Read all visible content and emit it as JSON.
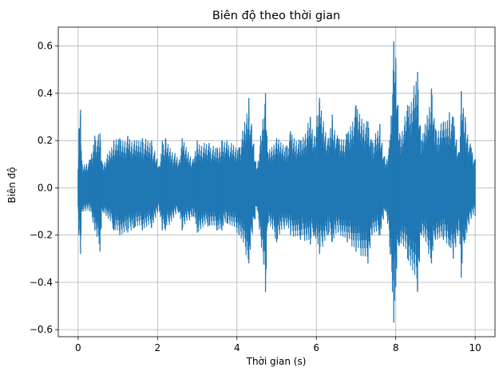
{
  "chart_data": {
    "type": "line",
    "title": "Biên độ theo thời gian",
    "xlabel": "Thời gian (s)",
    "ylabel": "Biên độ",
    "xlim": [
      -0.5,
      10.5
    ],
    "ylim": [
      -0.63,
      0.68
    ],
    "x_ticks": [
      0,
      2,
      4,
      6,
      8,
      10
    ],
    "x_tick_labels": [
      "0",
      "2",
      "4",
      "6",
      "8",
      "10"
    ],
    "y_ticks": [
      -0.6,
      -0.4,
      -0.2,
      0.0,
      0.2,
      0.4,
      0.6
    ],
    "y_tick_labels": [
      "−0.6",
      "−0.4",
      "−0.2",
      "0.0",
      "0.2",
      "0.4",
      "0.6"
    ],
    "grid": true,
    "line_color": "#1f77b4",
    "series": [
      {
        "name": "",
        "envelope": {
          "x": [
            0.0,
            0.02,
            0.06,
            0.1,
            0.3,
            0.42,
            0.55,
            0.62,
            0.9,
            1.05,
            1.25,
            1.42,
            1.62,
            1.85,
            2.05,
            2.12,
            2.2,
            2.55,
            2.62,
            2.9,
            3.0,
            3.3,
            3.5,
            3.62,
            3.75,
            4.05,
            4.3,
            4.5,
            4.72,
            4.78,
            5.0,
            5.25,
            5.35,
            5.6,
            5.85,
            5.95,
            6.08,
            6.3,
            6.4,
            6.55,
            6.78,
            7.0,
            7.3,
            7.4,
            7.6,
            7.75,
            7.85,
            7.95,
            8.0,
            8.1,
            8.3,
            8.55,
            8.65,
            8.9,
            9.0,
            9.2,
            9.35,
            9.45,
            9.6,
            9.65,
            9.75,
            9.9,
            10.0
          ],
          "upper": [
            0.08,
            0.25,
            0.33,
            0.1,
            0.12,
            0.22,
            0.23,
            0.1,
            0.2,
            0.21,
            0.22,
            0.2,
            0.21,
            0.2,
            0.09,
            0.2,
            0.21,
            0.12,
            0.21,
            0.12,
            0.2,
            0.19,
            0.17,
            0.2,
            0.2,
            0.17,
            0.38,
            0.08,
            0.4,
            0.15,
            0.21,
            0.18,
            0.24,
            0.2,
            0.3,
            0.22,
            0.38,
            0.21,
            0.31,
            0.21,
            0.23,
            0.35,
            0.28,
            0.2,
            0.27,
            0.1,
            0.2,
            0.62,
            0.55,
            0.23,
            0.35,
            0.49,
            0.2,
            0.42,
            0.25,
            0.28,
            0.32,
            0.3,
            0.15,
            0.41,
            0.3,
            0.17,
            0.12
          ],
          "lower": [
            -0.08,
            -0.2,
            -0.28,
            -0.1,
            -0.1,
            -0.18,
            -0.27,
            -0.1,
            -0.18,
            -0.2,
            -0.19,
            -0.17,
            -0.18,
            -0.17,
            -0.1,
            -0.18,
            -0.18,
            -0.1,
            -0.18,
            -0.12,
            -0.19,
            -0.16,
            -0.18,
            -0.18,
            -0.15,
            -0.2,
            -0.32,
            -0.08,
            -0.44,
            -0.15,
            -0.23,
            -0.16,
            -0.2,
            -0.22,
            -0.24,
            -0.2,
            -0.28,
            -0.2,
            -0.23,
            -0.19,
            -0.23,
            -0.27,
            -0.32,
            -0.2,
            -0.2,
            -0.1,
            -0.25,
            -0.57,
            -0.42,
            -0.23,
            -0.3,
            -0.44,
            -0.2,
            -0.32,
            -0.22,
            -0.22,
            -0.25,
            -0.3,
            -0.18,
            -0.38,
            -0.22,
            -0.13,
            -0.12
          ]
        }
      }
    ]
  }
}
